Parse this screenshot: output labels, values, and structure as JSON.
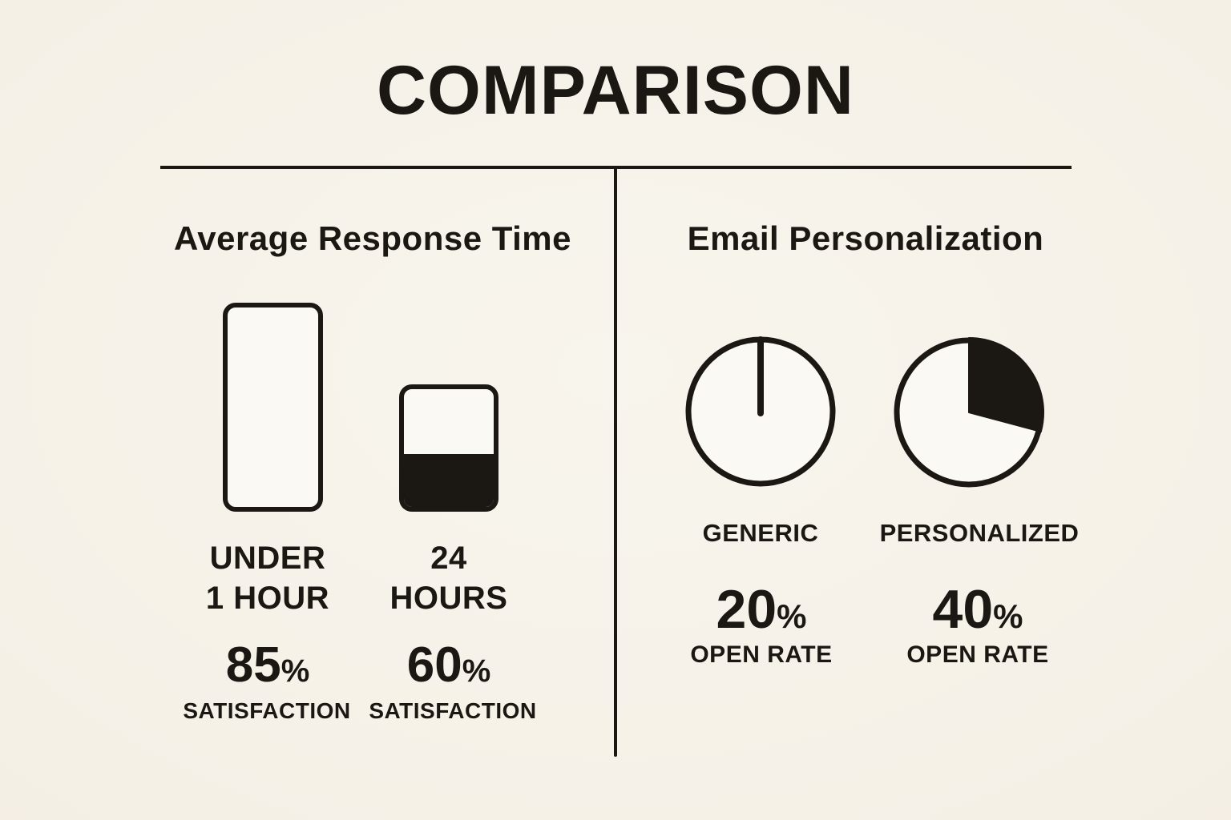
{
  "title": "COMPARISON",
  "colors": {
    "background": "#f5f0e6",
    "ink": "#1b1713"
  },
  "panels": {
    "left": {
      "header": "Average Response Time",
      "items": [
        {
          "label_line1": "UNDER",
          "label_line2": "1 HOUR",
          "value": "85",
          "unit": "%",
          "caption": "SATISFACTION",
          "bar_fill_percent": 0
        },
        {
          "label_line1": "24",
          "label_line2": "HOURS",
          "value": "60",
          "unit": "%",
          "caption": "SATISFACTION",
          "bar_fill_percent": 45
        }
      ]
    },
    "right": {
      "header": "Email Personalization",
      "items": [
        {
          "label": "GENERIC",
          "value": "20",
          "unit": "%",
          "caption": "OPEN RATE",
          "wedge_degrees": 0
        },
        {
          "label": "PERSONALIZED",
          "value": "40",
          "unit": "%",
          "caption": "OPEN RATE",
          "wedge_degrees": 105
        }
      ]
    }
  },
  "chart_data": [
    {
      "type": "bar",
      "title": "Average Response Time",
      "categories": [
        "UNDER 1 HOUR",
        "24 HOURS"
      ],
      "values": [
        85,
        60
      ],
      "value_unit": "% SATISFACTION",
      "legend_position": "none",
      "grid": false
    },
    {
      "type": "pie",
      "title": "Email Personalization",
      "categories": [
        "GENERIC",
        "PERSONALIZED"
      ],
      "values": [
        20,
        40
      ],
      "value_unit": "% OPEN RATE",
      "legend_position": "none",
      "grid": false
    }
  ]
}
